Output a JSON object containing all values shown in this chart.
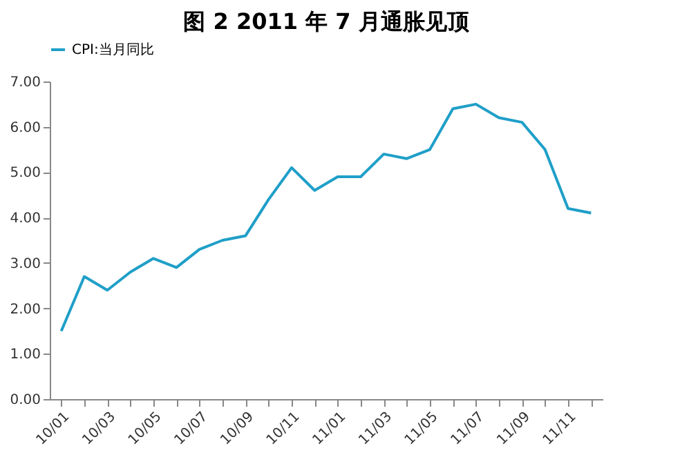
{
  "chart_data": {
    "type": "line",
    "title": "图 2  2011 年 7 月通胀见顶",
    "categories": [
      "10/01",
      null,
      "10/03",
      null,
      "10/05",
      null,
      "10/07",
      null,
      "10/09",
      null,
      "10/11",
      null,
      "11/01",
      null,
      "11/03",
      null,
      "11/05",
      null,
      "11/07",
      null,
      "11/09",
      null,
      "11/11",
      null
    ],
    "series": [
      {
        "name": "CPI:当月同比",
        "color": "#1f9fc8",
        "values": [
          1.5,
          2.7,
          2.4,
          2.8,
          3.1,
          2.9,
          3.3,
          3.5,
          3.6,
          4.4,
          5.1,
          4.6,
          4.9,
          4.9,
          5.4,
          5.3,
          5.5,
          6.4,
          6.5,
          6.2,
          6.1,
          5.5,
          4.2,
          4.1
        ]
      }
    ],
    "ylim": [
      0,
      7
    ],
    "yticks": [
      {
        "value": 0,
        "label": "0.00"
      },
      {
        "value": 1,
        "label": "1.00"
      },
      {
        "value": 2,
        "label": "2.00"
      },
      {
        "value": 3,
        "label": "3.00"
      },
      {
        "value": 4,
        "label": "4.00"
      },
      {
        "value": 5,
        "label": "5.00"
      },
      {
        "value": 6,
        "label": "6.00"
      },
      {
        "value": 7,
        "label": "7.00"
      }
    ],
    "legend": "top",
    "grid": false,
    "marker": "none",
    "line_style": "solid"
  }
}
